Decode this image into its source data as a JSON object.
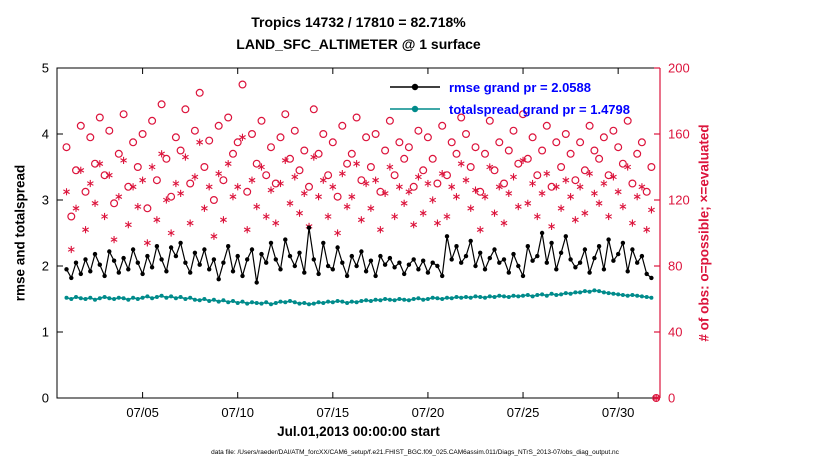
{
  "figure": {
    "title1": "Tropics 14732 / 17810 = 82.718%",
    "title2": "LAND_SFC_ALTIMETER @ 1 surface",
    "xlabel": "Jul.01,2013 00:00:00 start",
    "ylabel_left": "rmse and totalspread",
    "ylabel_right": "# of obs: o=possible; ×=evaluated",
    "footer": "data file: /Users/raeder/DAI/ATM_forcXX/CAM6_setup/f.e21.FHIST_BGC.f09_025.CAM6assim.011/Diags_NTrS_2013-07/obs_diag_output.nc",
    "legend": [
      {
        "label": "rmse grand pr = 2.0588",
        "series": "rmse"
      },
      {
        "label": "totalspread grand pr = 1.4798",
        "series": "totalspread"
      }
    ]
  },
  "colors": {
    "rmse": "#000000",
    "totalspread": "#008B8B",
    "obs": "#DC143C",
    "legend_text": "#0000FF",
    "axis": "#000000"
  },
  "chart_data": {
    "type": "line+scatter",
    "x_start": 0,
    "x_step": 0.25,
    "x_axis": {
      "min": -0.5,
      "max": 31.2,
      "ticks": [
        4,
        9,
        14,
        19,
        24,
        29
      ],
      "tick_labels": [
        "07/05",
        "07/10",
        "07/15",
        "07/20",
        "07/25",
        "07/30"
      ]
    },
    "y_left": {
      "min": 0,
      "max": 5,
      "ticks": [
        0,
        1,
        2,
        3,
        4,
        5
      ]
    },
    "y_right": {
      "min": 0,
      "max": 200,
      "ticks": [
        0,
        40,
        80,
        120,
        160,
        200
      ]
    },
    "series_meta": [
      {
        "key": "possible",
        "type": "scatter-circle",
        "axis": "right",
        "color_key": "obs"
      },
      {
        "key": "evaluated",
        "type": "scatter-asterisk",
        "axis": "right",
        "color_key": "obs"
      },
      {
        "key": "rmse",
        "type": "line",
        "axis": "left",
        "color_key": "rmse"
      },
      {
        "key": "totalspread",
        "type": "line",
        "axis": "left",
        "color_key": "totalspread"
      }
    ],
    "series": {
      "rmse": [
        1.95,
        1.82,
        2.05,
        1.88,
        2.1,
        1.92,
        2.18,
        2.02,
        1.85,
        2.22,
        2.08,
        1.9,
        2.12,
        1.95,
        2.25,
        2.05,
        1.88,
        2.15,
        1.98,
        2.3,
        2.1,
        1.92,
        2.28,
        2.15,
        2.35,
        2.05,
        1.9,
        2.2,
        2.02,
        2.25,
        1.95,
        2.1,
        1.8,
        2.05,
        2.3,
        1.92,
        2.15,
        1.85,
        2.1,
        2.25,
        1.75,
        2.18,
        2.05,
        2.35,
        2.1,
        1.95,
        2.4,
        2.15,
        2.0,
        2.2,
        1.9,
        2.58,
        2.1,
        1.88,
        2.35,
        2.0,
        1.95,
        2.28,
        2.05,
        1.85,
        2.15,
        2.0,
        2.22,
        1.92,
        2.08,
        1.85,
        2.15,
        2.02,
        2.12,
        1.98,
        2.05,
        1.88,
        2.02,
        2.1,
        1.95,
        2.08,
        1.9,
        2.05,
        2.0,
        1.85,
        2.45,
        2.1,
        2.3,
        2.05,
        2.15,
        2.38,
        2.0,
        2.2,
        1.95,
        2.12,
        2.25,
        2.05,
        2.1,
        1.9,
        2.18,
        2.0,
        1.85,
        2.3,
        2.08,
        2.15,
        2.5,
        2.05,
        2.35,
        1.95,
        2.2,
        2.45,
        2.1,
        1.98,
        2.05,
        2.25,
        1.9,
        2.12,
        2.3,
        1.95,
        2.4,
        2.08,
        2.18,
        2.35,
        1.92,
        2.25,
        2.05,
        2.15,
        1.88,
        1.82
      ],
      "totalspread": [
        1.52,
        1.5,
        1.53,
        1.51,
        1.5,
        1.52,
        1.49,
        1.51,
        1.53,
        1.51,
        1.5,
        1.52,
        1.51,
        1.49,
        1.52,
        1.5,
        1.52,
        1.54,
        1.51,
        1.53,
        1.55,
        1.52,
        1.54,
        1.51,
        1.53,
        1.5,
        1.52,
        1.49,
        1.48,
        1.5,
        1.47,
        1.49,
        1.46,
        1.48,
        1.45,
        1.47,
        1.44,
        1.46,
        1.43,
        1.45,
        1.44,
        1.43,
        1.45,
        1.42,
        1.44,
        1.46,
        1.45,
        1.47,
        1.45,
        1.43,
        1.44,
        1.42,
        1.43,
        1.45,
        1.44,
        1.46,
        1.45,
        1.47,
        1.46,
        1.44,
        1.46,
        1.45,
        1.47,
        1.48,
        1.47,
        1.49,
        1.48,
        1.5,
        1.49,
        1.48,
        1.5,
        1.49,
        1.48,
        1.5,
        1.51,
        1.49,
        1.5,
        1.52,
        1.51,
        1.5,
        1.52,
        1.51,
        1.53,
        1.52,
        1.53,
        1.52,
        1.54,
        1.53,
        1.52,
        1.54,
        1.53,
        1.55,
        1.54,
        1.53,
        1.55,
        1.54,
        1.55,
        1.56,
        1.54,
        1.56,
        1.57,
        1.55,
        1.58,
        1.56,
        1.57,
        1.59,
        1.58,
        1.6,
        1.6,
        1.62,
        1.61,
        1.63,
        1.62,
        1.6,
        1.59,
        1.58,
        1.57,
        1.56,
        1.55,
        1.56,
        1.55,
        1.54,
        1.53,
        1.52
      ],
      "possible": [
        152,
        110,
        138,
        165,
        125,
        158,
        142,
        170,
        135,
        162,
        118,
        148,
        172,
        128,
        155,
        140,
        160,
        115,
        168,
        132,
        178,
        145,
        122,
        158,
        150,
        175,
        130,
        162,
        185,
        140,
        156,
        120,
        165,
        132,
        170,
        148,
        155,
        190,
        125,
        160,
        142,
        168,
        135,
        152,
        130,
        158,
        172,
        145,
        162,
        138,
        150,
        128,
        175,
        148,
        160,
        135,
        155,
        122,
        165,
        142,
        148,
        170,
        132,
        158,
        140,
        160,
        125,
        150,
        168,
        135,
        155,
        145,
        152,
        128,
        162,
        138,
        158,
        145,
        130,
        165,
        135,
        155,
        148,
        170,
        160,
        140,
        152,
        125,
        148,
        168,
        138,
        155,
        130,
        150,
        162,
        142,
        172,
        145,
        158,
        135,
        150,
        165,
        128,
        155,
        140,
        160,
        148,
        132,
        155,
        138,
        165,
        150,
        145,
        158,
        135,
        162,
        152,
        142,
        168,
        130,
        148,
        155,
        125,
        140
      ],
      "evaluated": [
        125,
        90,
        115,
        138,
        102,
        130,
        118,
        142,
        110,
        135,
        96,
        122,
        144,
        105,
        128,
        116,
        132,
        94,
        140,
        108,
        148,
        120,
        100,
        130,
        124,
        146,
        106,
        134,
        155,
        115,
        128,
        98,
        136,
        108,
        142,
        122,
        128,
        158,
        102,
        132,
        116,
        140,
        110,
        126,
        106,
        130,
        144,
        118,
        134,
        112,
        124,
        104,
        146,
        122,
        132,
        110,
        128,
        100,
        136,
        116,
        122,
        142,
        108,
        130,
        115,
        132,
        102,
        124,
        140,
        110,
        128,
        118,
        125,
        105,
        134,
        112,
        130,
        120,
        106,
        136,
        110,
        128,
        122,
        142,
        132,
        115,
        126,
        102,
        122,
        140,
        112,
        128,
        106,
        124,
        134,
        116,
        144,
        118,
        130,
        110,
        124,
        136,
        104,
        128,
        115,
        132,
        122,
        108,
        128,
        112,
        136,
        124,
        118,
        130,
        110,
        134,
        125,
        116,
        140,
        106,
        122,
        128,
        102,
        114
      ]
    },
    "end_marker": {
      "x": 31.0,
      "value": 0
    }
  }
}
